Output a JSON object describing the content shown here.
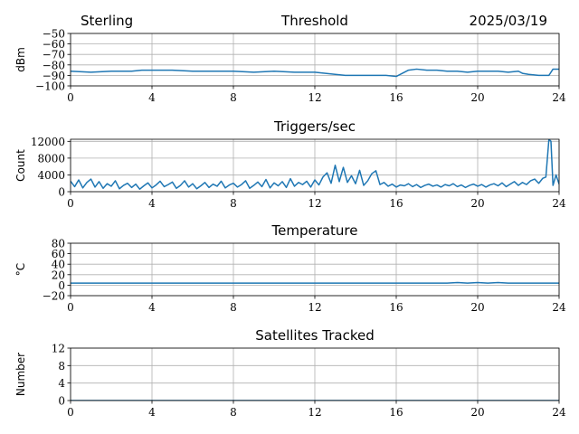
{
  "header": {
    "station": "Sterling",
    "date": "2025/03/19"
  },
  "chart_data": [
    {
      "type": "line",
      "title": "Threshold",
      "ylabel": "dBm",
      "xlabel": "",
      "xlim": [
        0,
        24
      ],
      "ylim": [
        -100,
        -50
      ],
      "xticks": [
        0,
        4,
        8,
        12,
        16,
        20,
        24
      ],
      "yticks": [
        -100,
        -90,
        -80,
        -70,
        -60,
        -50
      ],
      "ytick_labels": [
        "−100",
        "−90",
        "−80",
        "−70",
        "−60",
        "−50"
      ],
      "grid": true,
      "color": "#1f77b4",
      "x": [
        0,
        1,
        2,
        3,
        3.5,
        4,
        4.5,
        5,
        6,
        7,
        8,
        9,
        10,
        11,
        12,
        13,
        13.5,
        14,
        15,
        15.5,
        16,
        16.3,
        16.6,
        17,
        17.5,
        18,
        18.5,
        19,
        19.5,
        20,
        20.5,
        21,
        21.5,
        22,
        22.2,
        22.5,
        23,
        23.5,
        23.7,
        24
      ],
      "values": [
        -86,
        -87,
        -86,
        -86,
        -85,
        -85,
        -85,
        -85,
        -86,
        -86,
        -86,
        -87,
        -86,
        -87,
        -87,
        -89,
        -90,
        -90,
        -90,
        -90,
        -91,
        -88,
        -85,
        -84,
        -85,
        -85,
        -86,
        -86,
        -87,
        -86,
        -86,
        -86,
        -87,
        -86,
        -88,
        -89,
        -90,
        -90,
        -84,
        -84
      ]
    },
    {
      "type": "line",
      "title": "Triggers/sec",
      "ylabel": "Count",
      "xlabel": "",
      "xlim": [
        0,
        24
      ],
      "ylim": [
        0,
        12500
      ],
      "xticks": [
        0,
        4,
        8,
        12,
        16,
        20,
        24
      ],
      "yticks": [
        0,
        4000,
        8000,
        12000
      ],
      "ytick_labels": [
        "0",
        "4000",
        "8000",
        "12000"
      ],
      "grid": true,
      "color": "#1f77b4",
      "x": [
        0,
        0.2,
        0.4,
        0.6,
        0.8,
        1,
        1.2,
        1.4,
        1.6,
        1.8,
        2,
        2.2,
        2.4,
        2.6,
        2.8,
        3,
        3.2,
        3.4,
        3.6,
        3.8,
        4,
        4.2,
        4.4,
        4.6,
        4.8,
        5,
        5.2,
        5.4,
        5.6,
        5.8,
        6,
        6.2,
        6.4,
        6.6,
        6.8,
        7,
        7.2,
        7.4,
        7.6,
        7.8,
        8,
        8.2,
        8.4,
        8.6,
        8.8,
        9,
        9.2,
        9.4,
        9.6,
        9.8,
        10,
        10.2,
        10.4,
        10.6,
        10.8,
        11,
        11.2,
        11.4,
        11.6,
        11.8,
        12,
        12.2,
        12.4,
        12.6,
        12.8,
        13,
        13.2,
        13.4,
        13.6,
        13.8,
        14,
        14.2,
        14.4,
        14.6,
        14.8,
        15,
        15.2,
        15.4,
        15.6,
        15.8,
        16,
        16.2,
        16.4,
        16.6,
        16.8,
        17,
        17.2,
        17.4,
        17.6,
        17.8,
        18,
        18.2,
        18.4,
        18.6,
        18.8,
        19,
        19.2,
        19.4,
        19.6,
        19.8,
        20,
        20.2,
        20.4,
        20.6,
        20.8,
        21,
        21.2,
        21.4,
        21.6,
        21.8,
        22,
        22.2,
        22.4,
        22.6,
        22.8,
        23,
        23.2,
        23.35,
        23.5,
        23.6,
        23.7,
        23.85,
        24
      ],
      "values": [
        2500,
        1200,
        2800,
        900,
        2200,
        3000,
        1100,
        2400,
        800,
        1900,
        1300,
        2600,
        700,
        1500,
        2000,
        1000,
        1800,
        600,
        1400,
        2100,
        900,
        1600,
        2500,
        1200,
        1700,
        2300,
        800,
        1500,
        2600,
        1100,
        1900,
        700,
        1400,
        2200,
        1000,
        1800,
        1300,
        2500,
        900,
        1600,
        2000,
        1100,
        1700,
        2600,
        800,
        1500,
        2300,
        1200,
        2900,
        900,
        2100,
        1400,
        2400,
        1000,
        3100,
        1300,
        2200,
        1700,
        2500,
        1100,
        2800,
        1600,
        3500,
        4500,
        2000,
        6300,
        2400,
        5800,
        2200,
        3800,
        1900,
        5100,
        1500,
        2600,
        4300,
        5000,
        1700,
        2200,
        1300,
        1800,
        1100,
        1600,
        1400,
        1900,
        1200,
        1700,
        1000,
        1500,
        1800,
        1300,
        1600,
        1100,
        1700,
        1400,
        1900,
        1200,
        1600,
        1000,
        1500,
        1800,
        1300,
        1700,
        1100,
        1600,
        1900,
        1400,
        2100,
        1200,
        1800,
        2400,
        1500,
        2200,
        1700,
        2600,
        3000,
        2000,
        3200,
        3500,
        12500,
        12000,
        1500,
        4000,
        1800
      ]
    },
    {
      "type": "line",
      "title": "Temperature",
      "ylabel": "°C",
      "xlabel": "",
      "xlim": [
        0,
        24
      ],
      "ylim": [
        -20,
        80
      ],
      "xticks": [
        0,
        4,
        8,
        12,
        16,
        20,
        24
      ],
      "yticks": [
        -20,
        0,
        20,
        40,
        60,
        80
      ],
      "ytick_labels": [
        "−20",
        "0",
        "20",
        "40",
        "60",
        "80"
      ],
      "grid": true,
      "color": "#1f77b4",
      "x": [
        0,
        4,
        8,
        12,
        16,
        18.5,
        19,
        19.5,
        20,
        20.5,
        21,
        21.5,
        22,
        24
      ],
      "values": [
        4,
        4,
        4,
        4,
        4,
        4,
        5,
        4,
        5,
        4,
        5,
        4,
        4,
        4
      ]
    },
    {
      "type": "line",
      "title": "Satellites Tracked",
      "ylabel": "Number",
      "xlabel": "",
      "xlim": [
        0,
        24
      ],
      "ylim": [
        0,
        12
      ],
      "xticks": [
        0,
        4,
        8,
        12,
        16,
        20,
        24
      ],
      "yticks": [
        0,
        4,
        8,
        12
      ],
      "ytick_labels": [
        "0",
        "4",
        "8",
        "12"
      ],
      "grid": true,
      "color": "#1f77b4",
      "x": [
        0,
        24
      ],
      "values": [
        0,
        0
      ]
    }
  ]
}
